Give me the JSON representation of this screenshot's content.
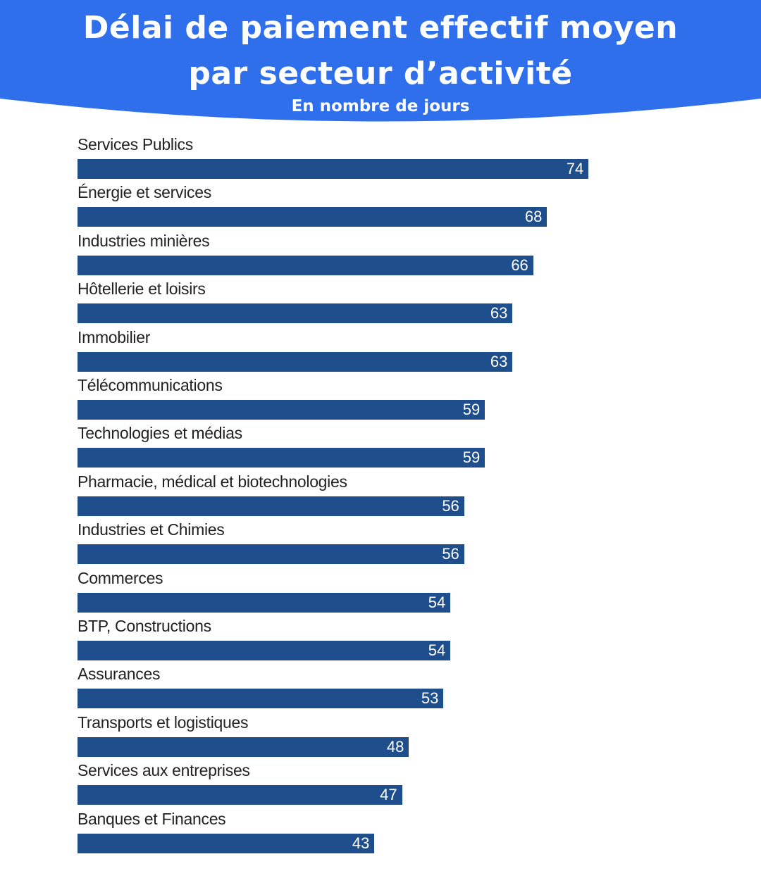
{
  "header": {
    "title_line_1": "Délai de paiement effectif moyen",
    "title_line_2": "par secteur d’activité",
    "subtitle": "En nombre de jours"
  },
  "colors": {
    "header_background": "#2f6fec",
    "bar": "#1f4e8c",
    "bar_value_text": "#ffffff",
    "label_text": "#222222"
  },
  "chart_data": {
    "type": "bar",
    "orientation": "horizontal",
    "title": "Délai de paiement effectif moyen par secteur d’activité",
    "subtitle": "En nombre de jours",
    "xlabel": "",
    "ylabel": "",
    "xlim": [
      0,
      100
    ],
    "grid": false,
    "legend": "none",
    "categories": [
      "Services Publics",
      "Énergie et services",
      "Industries minières",
      "Hôtellerie et loisirs",
      "Immobilier",
      "Télécommunications",
      "Technologies et médias",
      "Pharmacie, médical et biotechnologies",
      "Industries et Chimies",
      "Commerces",
      "BTP, Constructions",
      "Assurances",
      "Transports et logistiques",
      "Services aux entreprises",
      "Banques et Finances"
    ],
    "values": [
      74,
      68,
      66,
      63,
      63,
      59,
      59,
      56,
      56,
      54,
      54,
      53,
      48,
      47,
      43
    ]
  }
}
